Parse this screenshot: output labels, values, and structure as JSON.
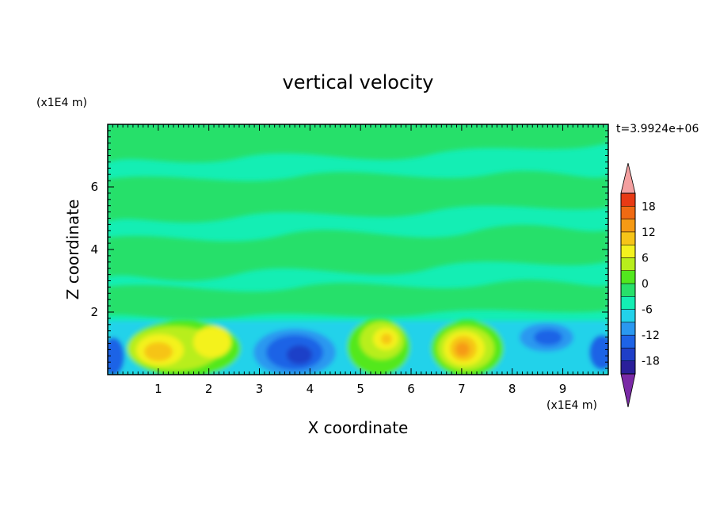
{
  "chart_data": {
    "type": "heatmap",
    "title": "vertical velocity",
    "xlabel": "X coordinate",
    "ylabel": "Z coordinate",
    "x_unit": "(x1E4 m)",
    "y_unit": "(x1E4 m)",
    "time_label": "t=3.9924e+06",
    "xlim": [
      0,
      9.9
    ],
    "ylim": [
      0,
      8
    ],
    "x_ticks": [
      1,
      2,
      3,
      4,
      5,
      6,
      7,
      8,
      9
    ],
    "y_ticks": [
      2,
      4,
      6
    ],
    "colorbar": {
      "ticks": [
        "18",
        "12",
        "6",
        "0",
        "-6",
        "-12",
        "-18"
      ],
      "levels": [
        -21,
        -18,
        -15,
        -12,
        -9,
        -6,
        -3,
        0,
        3,
        6,
        9,
        12,
        15,
        18,
        21
      ],
      "colors": [
        "#7a2aa6",
        "#2a1f9a",
        "#1f3fc8",
        "#1e63e6",
        "#2a98f0",
        "#22d2ea",
        "#14eeb4",
        "#28e06a",
        "#52e81e",
        "#b8ee1c",
        "#f4f21e",
        "#f6c418",
        "#f69a14",
        "#f06a12",
        "#e83a14",
        "#f4a0a0"
      ],
      "extend": "both"
    },
    "cells": [
      {
        "x": 0.2,
        "z": 0.5,
        "value": -9
      },
      {
        "x": 1.0,
        "z": 0.85,
        "value": 9
      },
      {
        "x": 2.0,
        "z": 1.0,
        "value": 6
      },
      {
        "x": 3.7,
        "z": 0.7,
        "value": -12
      },
      {
        "x": 5.6,
        "z": 1.1,
        "value": 7
      },
      {
        "x": 7.1,
        "z": 0.85,
        "value": 14
      },
      {
        "x": 8.9,
        "z": 1.2,
        "value": -10
      },
      {
        "x": 9.8,
        "z": 0.6,
        "value": -9
      }
    ],
    "grid": false
  }
}
